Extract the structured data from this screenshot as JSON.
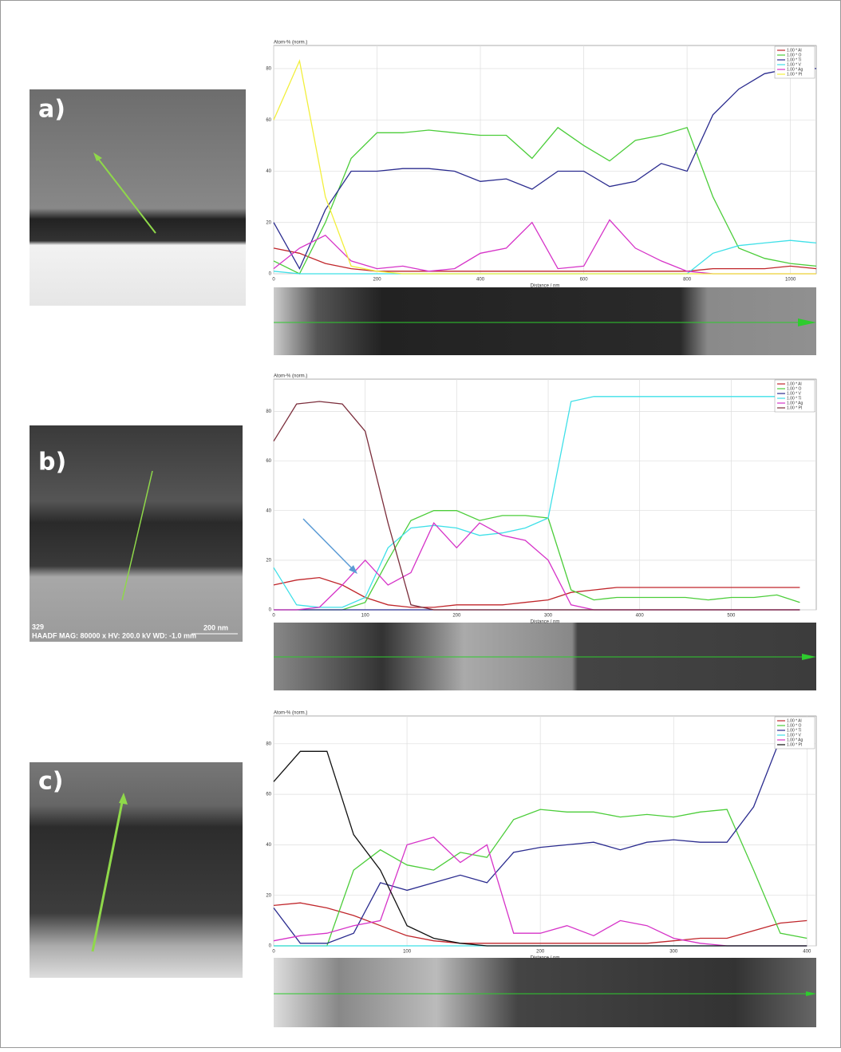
{
  "panels": [
    {
      "label": "a)"
    },
    {
      "label": "b)",
      "image_id": "329",
      "image_info": "HAADF  MAG: 80000 x  HV: 200.0 kV  WD: -1.0 mm",
      "scale_bar": "200 nm"
    },
    {
      "label": "c)"
    }
  ],
  "chart_data": [
    {
      "type": "line",
      "ylabel": "Atom-% (norm.)",
      "xlabel": "Distance / nm",
      "xlim": [
        0,
        1050
      ],
      "ylim": [
        0,
        89
      ],
      "xticks": [
        0,
        200,
        400,
        600,
        800,
        1000
      ],
      "yticks": [
        0,
        20,
        40,
        60,
        80
      ],
      "grid": true,
      "legend": "upper right",
      "x": [
        0,
        50,
        100,
        150,
        200,
        250,
        300,
        350,
        400,
        450,
        500,
        550,
        600,
        650,
        700,
        750,
        800,
        850,
        900,
        950,
        1000,
        1050
      ],
      "series": [
        {
          "name": "1.00 * Al",
          "color": "#c0262b",
          "values": [
            10,
            8,
            4,
            2,
            1,
            1,
            1,
            1,
            1,
            1,
            1,
            1,
            1,
            1,
            1,
            1,
            1,
            2,
            2,
            2,
            3,
            2
          ]
        },
        {
          "name": "1.00 * O",
          "color": "#4ccd3a",
          "values": [
            5,
            0,
            20,
            45,
            55,
            55,
            56,
            55,
            54,
            54,
            45,
            57,
            50,
            44,
            52,
            54,
            57,
            30,
            10,
            6,
            4,
            3
          ]
        },
        {
          "name": "1.00 * Ti",
          "color": "#2b2c8f",
          "values": [
            20,
            2,
            25,
            40,
            40,
            41,
            41,
            40,
            36,
            37,
            33,
            40,
            40,
            34,
            36,
            43,
            40,
            62,
            72,
            78,
            80,
            80
          ]
        },
        {
          "name": "1.00 * V",
          "color": "#3fe0e8",
          "values": [
            1,
            0,
            0,
            0,
            0,
            0,
            0,
            0,
            0,
            0,
            0,
            0,
            0,
            0,
            0,
            0,
            0,
            8,
            11,
            12,
            13,
            12
          ]
        },
        {
          "name": "1.00 * Ag",
          "color": "#d633c8",
          "values": [
            2,
            10,
            15,
            5,
            2,
            3,
            1,
            2,
            8,
            10,
            20,
            2,
            3,
            21,
            10,
            5,
            1,
            0,
            0,
            0,
            0,
            0
          ]
        },
        {
          "name": "1.00 * Pt",
          "color": "#f2ef3c",
          "values": [
            60,
            83,
            30,
            3,
            1,
            0,
            0,
            0,
            0,
            0,
            0,
            0,
            0,
            0,
            0,
            0,
            0,
            0,
            0,
            0,
            0,
            0
          ]
        }
      ]
    },
    {
      "type": "line",
      "ylabel": "Atom-% (norm.)",
      "xlabel": "Distance / nm",
      "xlim": [
        0,
        593
      ],
      "ylim": [
        0,
        93
      ],
      "xticks": [
        0,
        100,
        200,
        300,
        400,
        500
      ],
      "yticks": [
        0,
        20,
        40,
        60,
        80
      ],
      "grid": true,
      "legend": "upper right",
      "x": [
        0,
        25,
        50,
        75,
        100,
        125,
        150,
        175,
        200,
        225,
        250,
        275,
        300,
        325,
        350,
        375,
        400,
        425,
        450,
        475,
        500,
        525,
        550,
        575
      ],
      "series": [
        {
          "name": "1.00 * Al",
          "color": "#c0262b",
          "values": [
            10,
            12,
            13,
            10,
            5,
            2,
            1,
            1,
            2,
            2,
            2,
            3,
            4,
            7,
            8,
            9,
            9,
            9,
            9,
            9,
            9,
            9,
            9,
            9
          ]
        },
        {
          "name": "1.00 * O",
          "color": "#4ccd3a",
          "values": [
            0,
            0,
            0,
            0,
            3,
            20,
            36,
            40,
            40,
            36,
            38,
            38,
            37,
            8,
            4,
            5,
            5,
            5,
            5,
            4,
            5,
            5,
            6,
            3
          ]
        },
        {
          "name": "1.00 * V",
          "color": "#2b2c8f",
          "values": [
            0,
            0,
            0,
            0,
            0,
            0,
            0,
            0,
            0,
            0,
            0,
            0,
            0,
            0,
            0,
            0,
            0,
            0,
            0,
            0,
            0,
            0,
            0,
            0
          ]
        },
        {
          "name": "1.00 * Ti",
          "color": "#3fe0e8",
          "values": [
            17,
            2,
            1,
            1,
            5,
            25,
            33,
            34,
            33,
            30,
            31,
            33,
            37,
            84,
            86,
            86,
            86,
            86,
            86,
            86,
            86,
            86,
            86,
            86
          ]
        },
        {
          "name": "1.00 * Ag",
          "color": "#d633c8",
          "values": [
            0,
            0,
            1,
            10,
            20,
            10,
            15,
            35,
            25,
            35,
            30,
            28,
            20,
            2,
            0,
            0,
            0,
            0,
            0,
            0,
            0,
            0,
            0,
            0
          ]
        },
        {
          "name": "1.00 * Pt",
          "color": "#7b2d3b",
          "values": [
            68,
            83,
            84,
            83,
            72,
            35,
            2,
            0,
            0,
            0,
            0,
            0,
            0,
            0,
            0,
            0,
            0,
            0,
            0,
            0,
            0,
            0,
            0,
            0
          ]
        }
      ]
    },
    {
      "type": "line",
      "ylabel": "Atom-% (norm.)",
      "xlabel": "Distance / nm",
      "xlim": [
        0,
        407
      ],
      "ylim": [
        0,
        91
      ],
      "xticks": [
        0,
        100,
        200,
        300,
        400
      ],
      "yticks": [
        0,
        20,
        40,
        60,
        80
      ],
      "grid": true,
      "legend": "upper right",
      "x": [
        0,
        20,
        40,
        60,
        80,
        100,
        120,
        140,
        160,
        180,
        200,
        220,
        240,
        260,
        280,
        300,
        320,
        340,
        360,
        380,
        400
      ],
      "series": [
        {
          "name": "1.00 * Al",
          "color": "#c0262b",
          "values": [
            16,
            17,
            15,
            12,
            8,
            4,
            2,
            1,
            1,
            1,
            1,
            1,
            1,
            1,
            1,
            2,
            3,
            3,
            6,
            9,
            10
          ]
        },
        {
          "name": "1.00 * O",
          "color": "#4ccd3a",
          "values": [
            0,
            0,
            0,
            30,
            38,
            32,
            30,
            37,
            35,
            50,
            54,
            53,
            53,
            51,
            52,
            51,
            53,
            54,
            30,
            5,
            3
          ]
        },
        {
          "name": "1.00 * Ti",
          "color": "#2b2c8f",
          "values": [
            15,
            1,
            1,
            5,
            25,
            22,
            25,
            28,
            25,
            37,
            39,
            40,
            41,
            38,
            41,
            42,
            41,
            41,
            55,
            82,
            89
          ]
        },
        {
          "name": "1.00 * V",
          "color": "#3fe0e8",
          "values": [
            0,
            0,
            0,
            0,
            0,
            0,
            0,
            0,
            0,
            0,
            0,
            0,
            0,
            0,
            0,
            0,
            0,
            0,
            0,
            0,
            0
          ]
        },
        {
          "name": "1.00 * Ag",
          "color": "#d633c8",
          "values": [
            2,
            4,
            5,
            8,
            10,
            40,
            43,
            33,
            40,
            5,
            5,
            8,
            4,
            10,
            8,
            3,
            1,
            0,
            0,
            0,
            0
          ]
        },
        {
          "name": "1.00 * Pt",
          "color": "#111111",
          "values": [
            65,
            77,
            77,
            44,
            30,
            8,
            3,
            1,
            0,
            0,
            0,
            0,
            0,
            0,
            0,
            0,
            0,
            0,
            0,
            0,
            0
          ]
        }
      ]
    }
  ]
}
